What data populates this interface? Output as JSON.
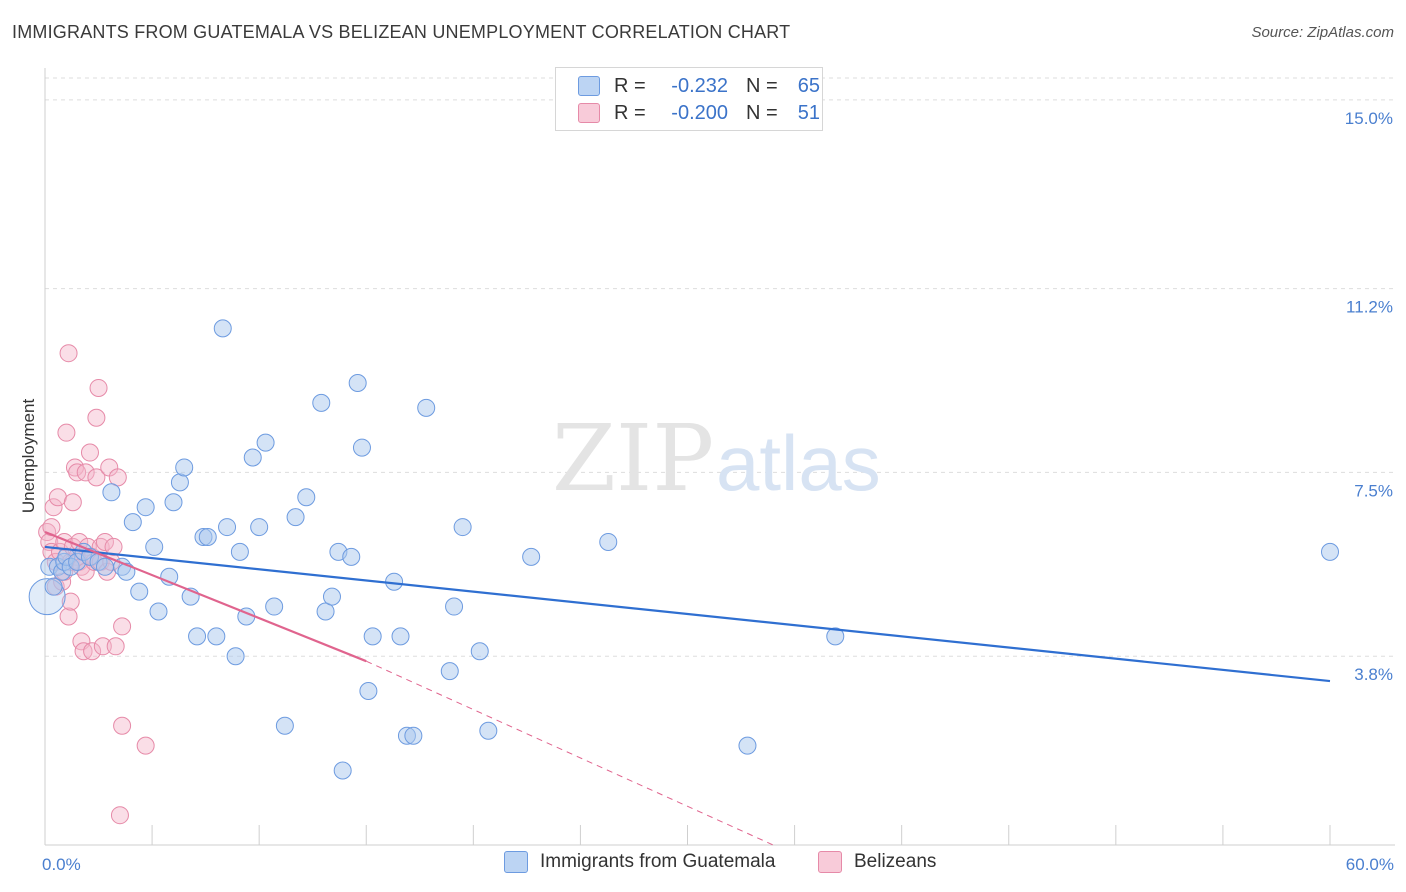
{
  "title": "IMMIGRANTS FROM GUATEMALA VS BELIZEAN UNEMPLOYMENT CORRELATION CHART",
  "source": "Source: ZipAtlas.com",
  "watermark": {
    "zip": "ZIP",
    "atlas": "atlas"
  },
  "colors": {
    "blue_fill": "#aac8ee",
    "blue_stroke": "#6d9be0",
    "blue_line": "#2f6fd1",
    "pink_fill": "#f5b6ca",
    "pink_stroke": "#e68aa8",
    "pink_line": "#e0648e",
    "grid": "#dddddd",
    "tick_text": "#4a7fcf"
  },
  "legend": {
    "rows": [
      {
        "series": "blue",
        "r_label": "R =",
        "r_value": "-0.232",
        "n_label": "N =",
        "n_value": "65"
      },
      {
        "series": "pink",
        "r_label": "R =",
        "r_value": "-0.200",
        "n_label": "N =",
        "n_value": "51"
      }
    ]
  },
  "bottom_legend": [
    {
      "series": "blue",
      "label": "Immigrants from Guatemala"
    },
    {
      "series": "pink",
      "label": "Belizeans"
    }
  ],
  "chart_data": {
    "type": "scatter",
    "title": "IMMIGRANTS FROM GUATEMALA VS BELIZEAN UNEMPLOYMENT CORRELATION CHART",
    "xlabel": "",
    "ylabel": "Unemployment",
    "xlim": [
      0,
      60
    ],
    "ylim": [
      0,
      15.5
    ],
    "x_ticks": [
      "0.0%",
      "60.0%"
    ],
    "y_ticks": [
      {
        "value": 3.8,
        "label": "3.8%"
      },
      {
        "value": 7.5,
        "label": "7.5%"
      },
      {
        "value": 11.2,
        "label": "11.2%"
      },
      {
        "value": 15.0,
        "label": "15.0%"
      }
    ],
    "grid": true,
    "series": [
      {
        "name": "Immigrants from Guatemala",
        "color": "blue",
        "R": -0.232,
        "N": 65,
        "trend": {
          "x0": 0,
          "y0": 6.0,
          "x1": 60,
          "y1": 3.3
        },
        "points": [
          [
            0.2,
            5.6
          ],
          [
            0.4,
            5.2
          ],
          [
            0.6,
            5.6
          ],
          [
            0.8,
            5.5
          ],
          [
            0.9,
            5.7
          ],
          [
            1.0,
            5.8
          ],
          [
            1.2,
            5.6
          ],
          [
            1.5,
            5.7
          ],
          [
            1.8,
            5.9
          ],
          [
            2.1,
            5.8
          ],
          [
            2.5,
            5.7
          ],
          [
            2.8,
            5.6
          ],
          [
            3.1,
            7.1
          ],
          [
            3.6,
            5.6
          ],
          [
            3.8,
            5.5
          ],
          [
            4.1,
            6.5
          ],
          [
            4.4,
            5.1
          ],
          [
            4.7,
            6.8
          ],
          [
            5.1,
            6.0
          ],
          [
            5.3,
            4.7
          ],
          [
            5.8,
            5.4
          ],
          [
            6.0,
            6.9
          ],
          [
            6.3,
            7.3
          ],
          [
            6.5,
            7.6
          ],
          [
            6.8,
            5.0
          ],
          [
            7.1,
            4.2
          ],
          [
            7.4,
            6.2
          ],
          [
            7.6,
            6.2
          ],
          [
            8.0,
            4.2
          ],
          [
            8.3,
            10.4
          ],
          [
            8.5,
            6.4
          ],
          [
            8.9,
            3.8
          ],
          [
            9.1,
            5.9
          ],
          [
            9.4,
            4.6
          ],
          [
            9.7,
            7.8
          ],
          [
            10.0,
            6.4
          ],
          [
            10.3,
            8.1
          ],
          [
            10.7,
            4.8
          ],
          [
            11.2,
            2.4
          ],
          [
            11.7,
            6.6
          ],
          [
            12.2,
            7.0
          ],
          [
            12.9,
            8.9
          ],
          [
            13.1,
            4.7
          ],
          [
            13.4,
            5.0
          ],
          [
            13.7,
            5.9
          ],
          [
            13.9,
            1.5
          ],
          [
            14.3,
            5.8
          ],
          [
            14.6,
            9.3
          ],
          [
            14.8,
            8.0
          ],
          [
            15.1,
            3.1
          ],
          [
            15.3,
            4.2
          ],
          [
            16.3,
            5.3
          ],
          [
            16.6,
            4.2
          ],
          [
            16.9,
            2.2
          ],
          [
            17.2,
            2.2
          ],
          [
            17.8,
            8.8
          ],
          [
            18.9,
            3.5
          ],
          [
            19.1,
            4.8
          ],
          [
            19.5,
            6.4
          ],
          [
            20.3,
            3.9
          ],
          [
            20.7,
            2.3
          ],
          [
            22.7,
            5.8
          ],
          [
            26.3,
            6.1
          ],
          [
            32.8,
            2.0
          ],
          [
            36.9,
            4.2
          ],
          [
            60.0,
            5.9
          ]
        ]
      },
      {
        "name": "Belizeans",
        "color": "pink",
        "R": -0.2,
        "N": 51,
        "trend": {
          "x0": 0,
          "y0": 6.3,
          "x1": 15,
          "y1": 3.7
        },
        "trend_dashed": {
          "x0": 15,
          "y0": 3.7,
          "x1": 34,
          "y1": 0.0
        },
        "points": [
          [
            0.1,
            6.3
          ],
          [
            0.2,
            6.1
          ],
          [
            0.3,
            6.4
          ],
          [
            0.3,
            5.9
          ],
          [
            0.4,
            6.8
          ],
          [
            0.5,
            5.2
          ],
          [
            0.5,
            5.7
          ],
          [
            0.6,
            7.0
          ],
          [
            0.7,
            5.9
          ],
          [
            0.8,
            5.3
          ],
          [
            0.9,
            6.1
          ],
          [
            0.9,
            5.5
          ],
          [
            1.0,
            8.3
          ],
          [
            1.1,
            9.9
          ],
          [
            1.1,
            4.6
          ],
          [
            1.2,
            5.7
          ],
          [
            1.2,
            4.9
          ],
          [
            1.3,
            6.9
          ],
          [
            1.3,
            6.0
          ],
          [
            1.4,
            7.6
          ],
          [
            1.5,
            5.8
          ],
          [
            1.5,
            7.5
          ],
          [
            1.6,
            6.1
          ],
          [
            1.6,
            5.7
          ],
          [
            1.7,
            5.6
          ],
          [
            1.7,
            4.1
          ],
          [
            1.8,
            3.9
          ],
          [
            1.9,
            5.5
          ],
          [
            1.9,
            7.5
          ],
          [
            2.0,
            6.0
          ],
          [
            2.1,
            7.9
          ],
          [
            2.2,
            5.8
          ],
          [
            2.2,
            3.9
          ],
          [
            2.3,
            5.7
          ],
          [
            2.4,
            7.4
          ],
          [
            2.4,
            8.6
          ],
          [
            2.5,
            9.2
          ],
          [
            2.6,
            6.0
          ],
          [
            2.6,
            5.7
          ],
          [
            2.7,
            4.0
          ],
          [
            2.8,
            6.1
          ],
          [
            2.9,
            5.5
          ],
          [
            3.0,
            7.6
          ],
          [
            3.1,
            5.7
          ],
          [
            3.2,
            6.0
          ],
          [
            3.3,
            4.0
          ],
          [
            3.4,
            7.4
          ],
          [
            3.6,
            4.4
          ],
          [
            3.6,
            2.4
          ],
          [
            4.7,
            2.0
          ],
          [
            3.5,
            0.6
          ]
        ]
      }
    ]
  }
}
